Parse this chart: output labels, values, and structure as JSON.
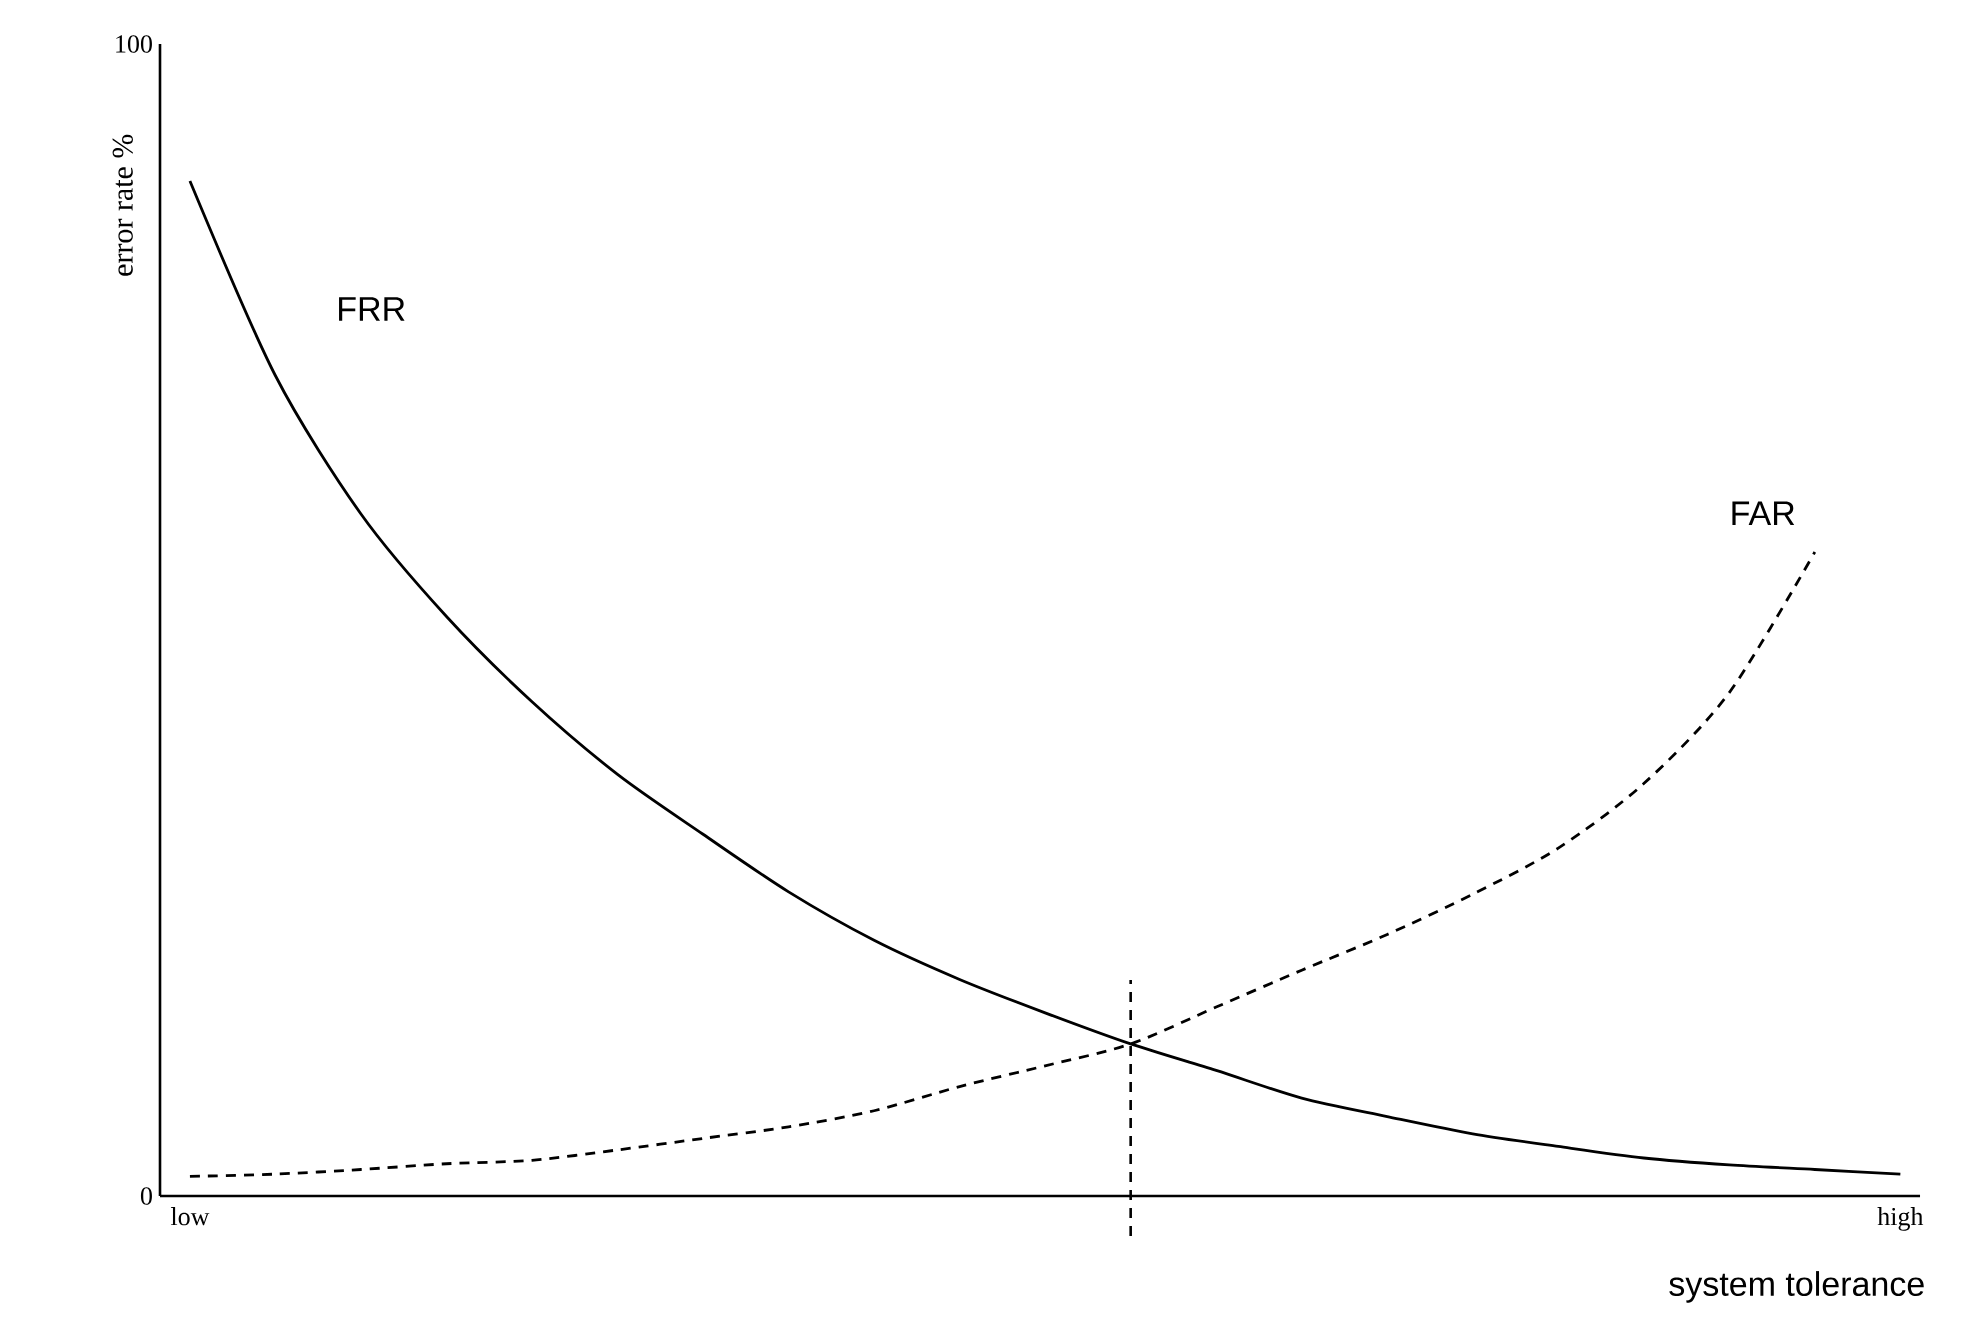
{
  "chart_data": {
    "type": "line",
    "xlabel": "system tolerance",
    "ylabel": "error rate  %",
    "categories": [
      "low",
      null,
      null,
      null,
      null,
      null,
      null,
      null,
      null,
      null,
      null,
      null,
      null,
      null,
      null,
      null,
      null,
      null,
      null,
      null,
      "high"
    ],
    "ylim": [
      0,
      100
    ],
    "yticks": [
      0,
      100
    ],
    "grid": false,
    "legend": false,
    "marker": "none",
    "series": [
      {
        "name": "FRR",
        "color": "#000000",
        "line_style": "solid",
        "values": [
          88.1,
          71.2,
          59.2,
          50.3,
          42.9,
          36.6,
          31.4,
          26.4,
          22.2,
          18.8,
          15.9,
          13.2,
          10.9,
          8.5,
          6.9,
          5.4,
          4.3,
          3.3,
          2.7,
          2.3,
          1.9
        ]
      },
      {
        "name": "FAR",
        "color": "#000000",
        "line_style": "dashed",
        "values": [
          1.7,
          1.9,
          2.3,
          2.8,
          3.1,
          4.0,
          5.0,
          6.0,
          7.4,
          9.5,
          11.3,
          13.2,
          16.4,
          19.6,
          22.7,
          26.2,
          30.2,
          35.8,
          43.7,
          55.9,
          null
        ]
      }
    ]
  }
}
